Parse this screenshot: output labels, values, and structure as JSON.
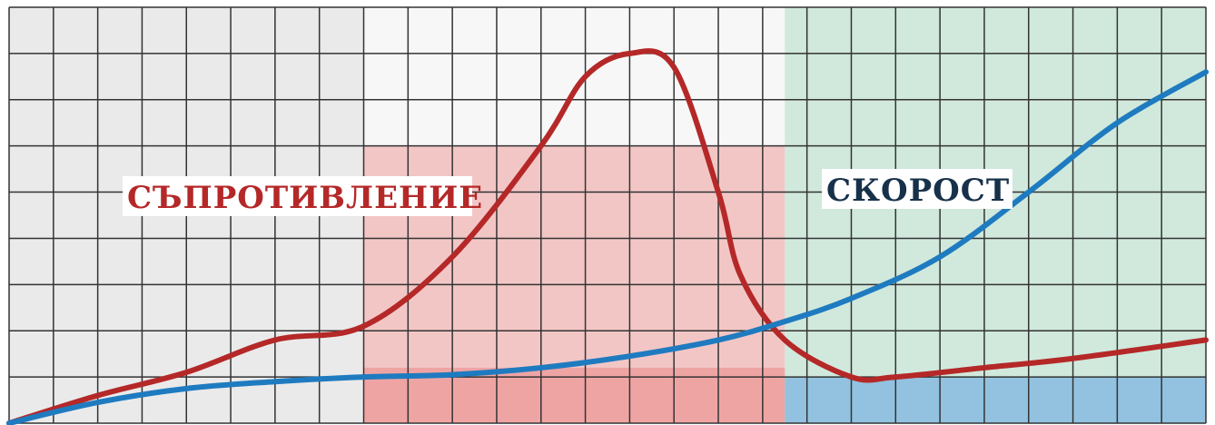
{
  "chart_data": {
    "type": "line",
    "title": "",
    "xlabel": "",
    "ylabel": "",
    "xlim": [
      0,
      27
    ],
    "ylim": [
      0,
      9
    ],
    "grid": true,
    "zones": [
      {
        "x0": 0,
        "x1": 8,
        "color": "#d9d9d9"
      },
      {
        "x0": 8,
        "x1": 17.5,
        "color": "#f2b6b6"
      },
      {
        "x0": 17.5,
        "x1": 27,
        "color": "#bfe3d0"
      }
    ],
    "series": [
      {
        "name": "СЪПРОТИВЛЕНИЕ",
        "color": "#b52828",
        "x": [
          0,
          2,
          4,
          6,
          8,
          10,
          12,
          13,
          14,
          15,
          16,
          16.5,
          17.5,
          19,
          20,
          22,
          24,
          27
        ],
        "y": [
          0.0,
          0.6,
          1.1,
          1.8,
          2.1,
          3.6,
          6.0,
          7.5,
          8.0,
          7.7,
          5.0,
          3.2,
          1.8,
          1.0,
          1.0,
          1.2,
          1.4,
          1.8
        ]
      },
      {
        "name": "СКОРОСТ",
        "color": "#1f7bc0",
        "x": [
          0,
          2,
          4,
          6,
          8,
          10,
          12,
          14,
          16,
          17.5,
          19,
          21,
          23,
          25,
          27
        ],
        "y": [
          0.0,
          0.45,
          0.75,
          0.9,
          1.0,
          1.05,
          1.2,
          1.45,
          1.8,
          2.2,
          2.7,
          3.6,
          5.0,
          6.5,
          7.6
        ]
      }
    ],
    "labels": [
      {
        "series": "СЪПРОТИВЛЕНИЕ",
        "text": "СЪПРОТИВЛЕНИЕ"
      },
      {
        "series": "СКОРОСТ",
        "text": "СКОРОСТ"
      }
    ]
  }
}
